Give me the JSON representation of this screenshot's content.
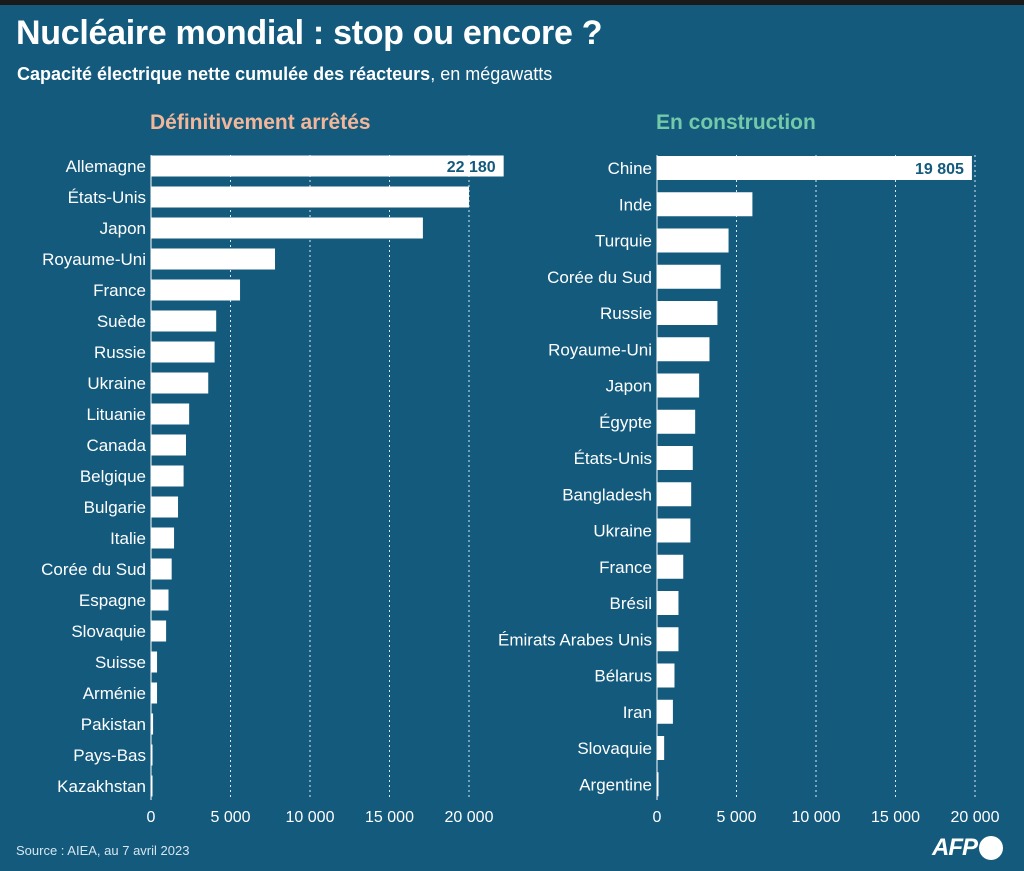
{
  "header": {
    "title": "Nucléaire mondial : stop ou encore ?",
    "subtitle_bold": "Capacité électrique nette cumulée des réacteurs",
    "subtitle_rest": ", en mégawatts"
  },
  "footer": {
    "source": "Source : AIEA, au 7 avril 2023",
    "logo": "AFP"
  },
  "colors": {
    "background": "#135a7d",
    "bar": "#ffffff",
    "left_title": "#f2b79a",
    "right_title": "#74c9a8"
  },
  "chart_data": [
    {
      "type": "bar",
      "orientation": "horizontal",
      "title": "Définitivement arrêtés",
      "categories": [
        "Allemagne",
        "États-Unis",
        "Japon",
        "Royaume-Uni",
        "France",
        "Suède",
        "Russie",
        "Ukraine",
        "Lituanie",
        "Canada",
        "Belgique",
        "Bulgarie",
        "Italie",
        "Corée du Sud",
        "Espagne",
        "Slovaquie",
        "Suisse",
        "Arménie",
        "Pakistan",
        "Pays-Bas",
        "Kazakhstan"
      ],
      "values": [
        22180,
        20000,
        17100,
        7800,
        5600,
        4100,
        4000,
        3600,
        2400,
        2200,
        2050,
        1700,
        1450,
        1300,
        1100,
        950,
        380,
        380,
        130,
        60,
        50
      ],
      "labeled_values": {
        "Allemagne": "22 180"
      },
      "xlim": [
        0,
        22500
      ],
      "xticks": [
        0,
        5000,
        10000,
        15000,
        20000
      ],
      "xtick_labels": [
        "0",
        "5 000",
        "10 000",
        "15 000",
        "20 000"
      ],
      "grid": true
    },
    {
      "type": "bar",
      "orientation": "horizontal",
      "title": "En construction",
      "categories": [
        "Chine",
        "Inde",
        "Turquie",
        "Corée du Sud",
        "Russie",
        "Royaume-Uni",
        "Japon",
        "Égypte",
        "États-Unis",
        "Bangladesh",
        "Ukraine",
        "France",
        "Brésil",
        "Émirats Arabes Unis",
        "Bélarus",
        "Iran",
        "Slovaquie",
        "Argentine"
      ],
      "values": [
        19805,
        6000,
        4500,
        4000,
        3800,
        3300,
        2650,
        2400,
        2250,
        2150,
        2100,
        1650,
        1350,
        1350,
        1100,
        1000,
        450,
        30
      ],
      "labeled_values": {
        "Chine": "19 805"
      },
      "xlim": [
        0,
        20500
      ],
      "xticks": [
        0,
        5000,
        10000,
        15000,
        20000
      ],
      "xtick_labels": [
        "0",
        "5 000",
        "10 000",
        "15 000",
        "20 000"
      ],
      "grid": true
    }
  ]
}
